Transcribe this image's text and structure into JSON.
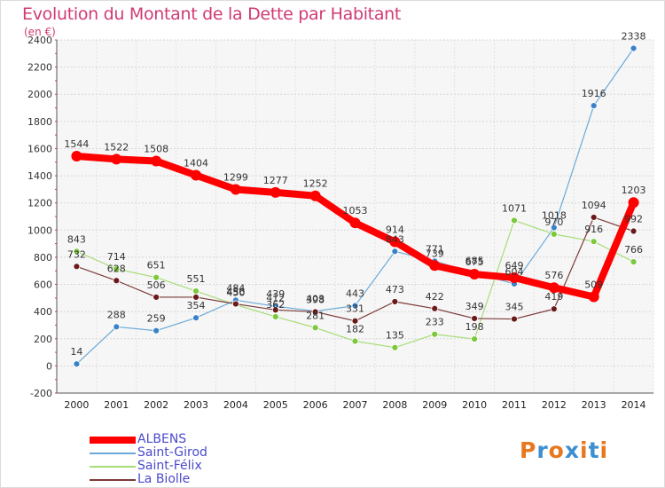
{
  "title": "Evolution du Montant de la Dette par Habitant",
  "subtitle": "(en €)",
  "logo": {
    "text": "Proxiti",
    "colors": [
      "#e8781e",
      "#3d8fd1",
      "#e8781e",
      "#3d8fd1",
      "#e8781e",
      "#3d8fd1",
      "#e8781e"
    ]
  },
  "chart_data": {
    "type": "line",
    "title": "Evolution du Montant de la Dette par Habitant",
    "subtitle": "(en €)",
    "x": [
      "2000",
      "2001",
      "2002",
      "2003",
      "2004",
      "2005",
      "2006",
      "2007",
      "2008",
      "2009",
      "2010",
      "2011",
      "2012",
      "2013",
      "2014"
    ],
    "ylim": [
      -200,
      2400
    ],
    "yticks": [
      -200,
      0,
      200,
      400,
      600,
      800,
      1000,
      1200,
      1400,
      1600,
      1800,
      2000,
      2200,
      2400
    ],
    "grid": true,
    "legend_position": "bottom-left",
    "series": [
      {
        "name": "ALBENS",
        "color": "#ff0000",
        "marker_color": "#ff0000",
        "width": 8,
        "values": [
          1544,
          1522,
          1508,
          1404,
          1299,
          1277,
          1252,
          1053,
          914,
          739,
          675,
          649,
          576,
          509,
          1203
        ],
        "labels": [
          "1544",
          "1522",
          "1508",
          "1404",
          "1299",
          "1277",
          "1252",
          "1053",
          "914",
          "739",
          "675",
          "649",
          "576",
          "509",
          "1203"
        ]
      },
      {
        "name": "Saint-Girod",
        "color": "#6aaad8",
        "marker_color": "#3a82c8",
        "width": 1.2,
        "values": [
          14,
          288,
          259,
          354,
          484,
          439,
          403,
          443,
          843,
          771,
          685,
          604,
          1018,
          1916,
          2338
        ],
        "labels": [
          "14",
          "288",
          "259",
          "354",
          "484",
          "439",
          "403",
          "443",
          "843",
          "771",
          "685",
          "604",
          "1018",
          "1916",
          "2338"
        ]
      },
      {
        "name": "Saint-Félix",
        "color": "#a8dc78",
        "marker_color": "#7cc83c",
        "width": 1.2,
        "values": [
          843,
          714,
          651,
          551,
          450,
          362,
          281,
          182,
          135,
          233,
          198,
          1071,
          970,
          916,
          766
        ],
        "labels": [
          "843",
          "714",
          "651",
          "551",
          "450",
          "362",
          "281",
          "182",
          "135",
          "233",
          "198",
          "1071",
          "970",
          "916",
          "766"
        ]
      },
      {
        "name": "La Biolle",
        "color": "#7c3a3a",
        "marker_color": "#6b1a1a",
        "width": 1.2,
        "values": [
          732,
          628,
          506,
          506,
          456,
          412,
          398,
          331,
          473,
          422,
          349,
          345,
          419,
          1094,
          992
        ],
        "labels": [
          "732",
          "628",
          "506",
          "",
          "456",
          "412",
          "398",
          "331",
          "473",
          "422",
          "349",
          "345",
          "419",
          "1094",
          "992"
        ]
      }
    ]
  }
}
